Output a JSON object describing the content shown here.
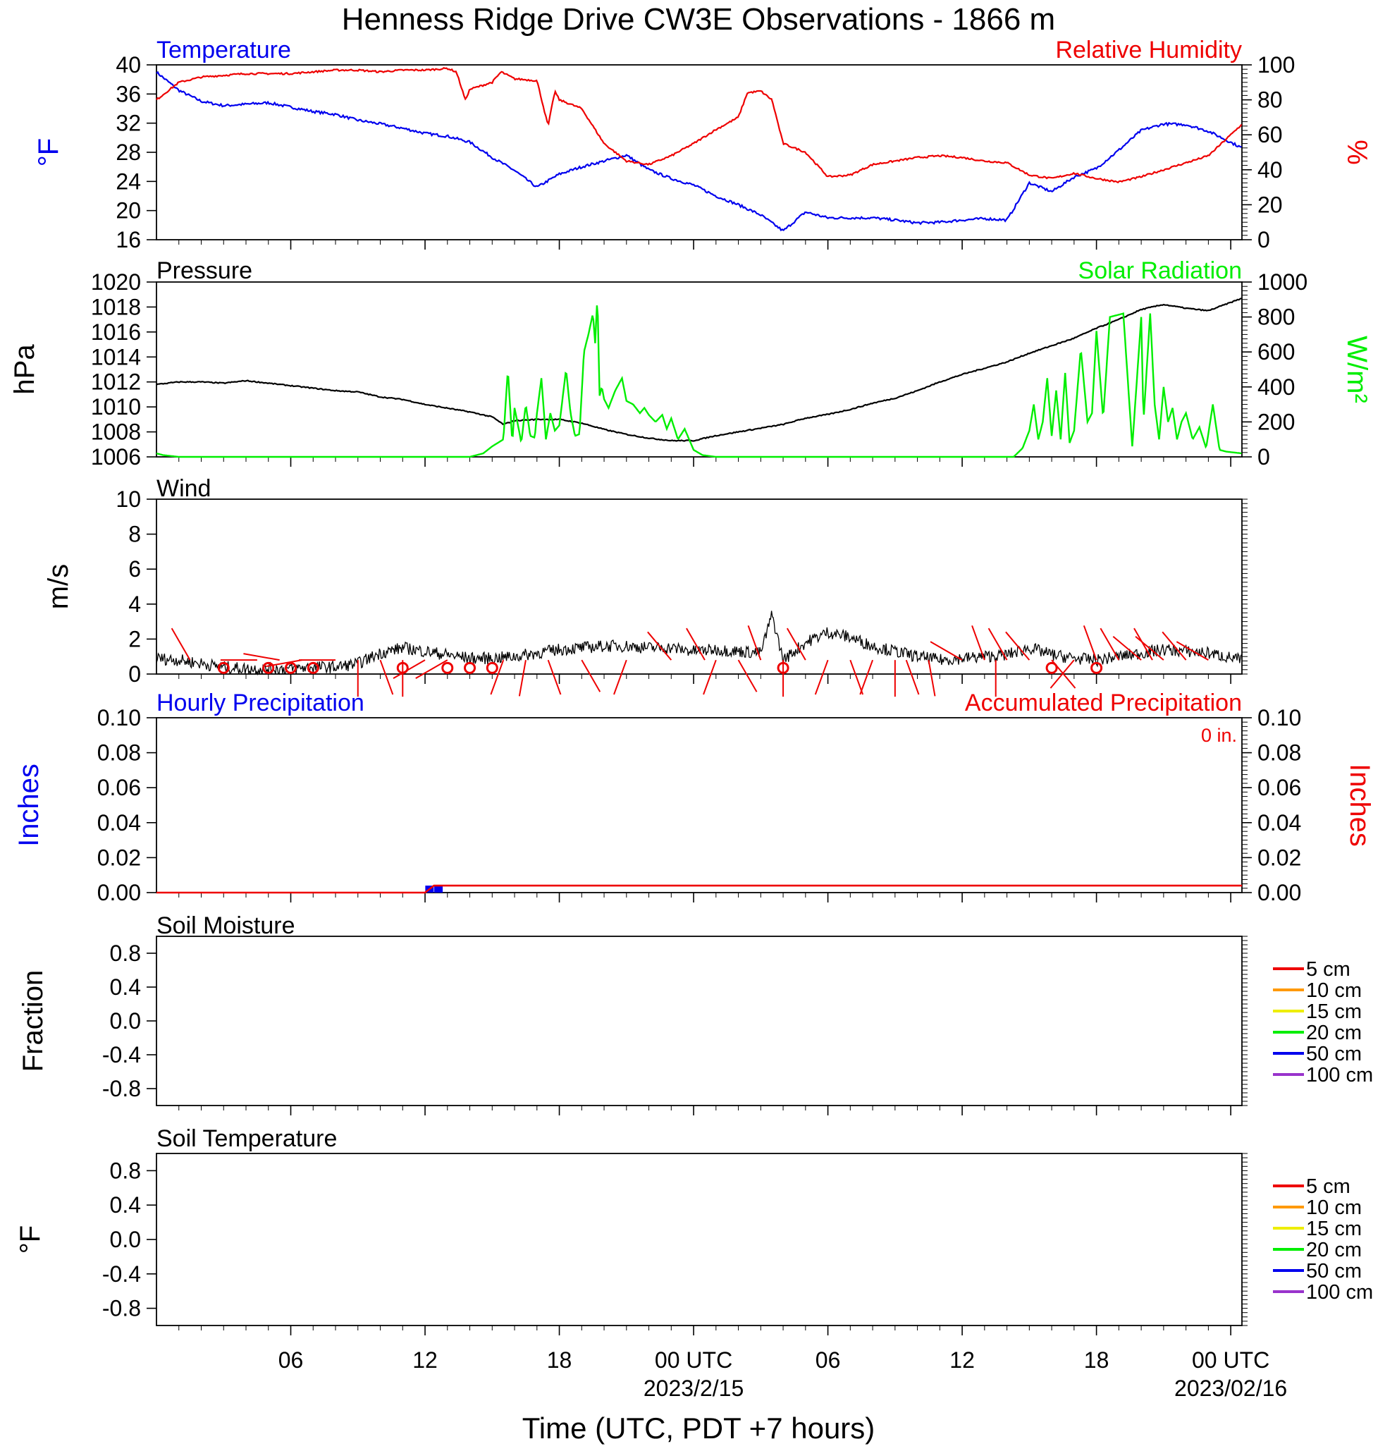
{
  "title": "Henness Ridge Drive CW3E Observations - 1866 m",
  "xaxis": {
    "title": "Time (UTC, PDT +7 hours)",
    "range_hours": [
      0,
      48.5
    ],
    "tick_hours": [
      6,
      12,
      18,
      24,
      30,
      36,
      42,
      48
    ],
    "tick_labels": [
      "06",
      "12",
      "18",
      "00 UTC",
      "06",
      "12",
      "18",
      "00 UTC"
    ],
    "date_labels": [
      {
        "hour": 24,
        "text": "2023/2/15"
      },
      {
        "hour": 48,
        "text": "2023/02/16"
      }
    ]
  },
  "colors": {
    "black": "#000000",
    "blue": "#0000ee",
    "red": "#ee0000",
    "green": "#00ee00",
    "soil": [
      "#ee0000",
      "#ff9900",
      "#eeee00",
      "#00ee00",
      "#0000ee",
      "#9933cc"
    ]
  },
  "panels": {
    "temp": {
      "left_title": "Temperature",
      "right_title": "Relative Humidity",
      "left_unit": "°F",
      "right_unit": "%",
      "left_ticks": [
        "16",
        "20",
        "24",
        "28",
        "32",
        "36",
        "40"
      ],
      "right_ticks": [
        "0",
        "20",
        "40",
        "60",
        "80",
        "100"
      ]
    },
    "pres": {
      "left_title": "Pressure",
      "right_title": "Solar Radiation",
      "left_unit": "hPa",
      "right_unit": "W/m²",
      "left_ticks": [
        "1006",
        "1008",
        "1010",
        "1012",
        "1014",
        "1016",
        "1018",
        "1020"
      ],
      "right_ticks": [
        "0",
        "200",
        "400",
        "600",
        "800",
        "1000"
      ]
    },
    "wind": {
      "left_title": "Wind",
      "left_unit": "m/s",
      "left_ticks": [
        "0",
        "2",
        "4",
        "6",
        "8",
        "10"
      ]
    },
    "precip": {
      "left_title": "Hourly Precipitation",
      "right_title": "Accumulated Precipitation",
      "total_label": "0 in.",
      "left_unit": "Inches",
      "right_unit": "Inches",
      "left_ticks": [
        "0.00",
        "0.02",
        "0.04",
        "0.06",
        "0.08",
        "0.10"
      ],
      "right_ticks": [
        "0.00",
        "0.02",
        "0.04",
        "0.06",
        "0.08",
        "0.10"
      ]
    },
    "soilm": {
      "left_title": "Soil Moisture",
      "left_unit": "Fraction",
      "left_ticks": [
        "-0.8",
        "-0.4",
        "0.0",
        "0.4",
        "0.8"
      ],
      "legend": [
        "5 cm",
        "10 cm",
        "15 cm",
        "20 cm",
        "50 cm",
        "100 cm"
      ]
    },
    "soilt": {
      "left_title": "Soil Temperature",
      "left_unit": "°F",
      "left_ticks": [
        "-0.8",
        "-0.4",
        "0.0",
        "0.4",
        "0.8"
      ],
      "legend": [
        "5 cm",
        "10 cm",
        "15 cm",
        "20 cm",
        "50 cm",
        "100 cm"
      ]
    }
  },
  "chart_data": [
    {
      "type": "line",
      "title": "Temperature / Relative Humidity",
      "x_units": "hours since 2023-02-14 00 UTC",
      "series": [
        {
          "name": "Temperature",
          "axis": "left",
          "color": "#0000ee",
          "ylim": [
            16,
            40
          ],
          "x": [
            0,
            1,
            2,
            3,
            4,
            5,
            6,
            7,
            8,
            9,
            10,
            11,
            12,
            13,
            14,
            15,
            16,
            17,
            18,
            19,
            20,
            21,
            22,
            23,
            24,
            25,
            26,
            27,
            28,
            29,
            30,
            31,
            32,
            33,
            34,
            35,
            36,
            37,
            38,
            39,
            40,
            41,
            42,
            43,
            44,
            45,
            46,
            47,
            48.5
          ],
          "values": [
            39,
            36.5,
            35,
            34.4,
            34.6,
            34.8,
            34.2,
            33.6,
            33.2,
            32.4,
            31.9,
            31.3,
            30.6,
            30.2,
            29.4,
            27.3,
            25.5,
            23.2,
            25,
            26,
            26.8,
            27.6,
            25.6,
            24.4,
            23.5,
            22,
            20.8,
            19.4,
            17.2,
            19.8,
            19,
            19,
            19,
            18.7,
            18.3,
            18.4,
            18.7,
            18.9,
            18.7,
            23.8,
            22.6,
            24.6,
            25.8,
            28.3,
            31,
            31.9,
            31.8,
            30.9,
            28.6
          ]
        },
        {
          "name": "Relative Humidity",
          "axis": "right",
          "color": "#ee0000",
          "ylim": [
            0,
            100
          ],
          "x": [
            0,
            1,
            2,
            3,
            4,
            5,
            6,
            7,
            8,
            9,
            10,
            11,
            12,
            13,
            13.4,
            13.8,
            14,
            15,
            15.4,
            16,
            17,
            17.5,
            17.8,
            18,
            19,
            20,
            21,
            22,
            23,
            24,
            25,
            26,
            26.4,
            27,
            27.5,
            28,
            29,
            30,
            31,
            32,
            33,
            34,
            35,
            36,
            37,
            38,
            39,
            40,
            41,
            42,
            43,
            44,
            45,
            46,
            47,
            48.5
          ],
          "values": [
            80,
            90,
            93,
            94,
            95,
            95,
            95,
            96,
            97,
            97,
            96,
            97,
            97,
            98,
            96,
            80,
            86,
            90,
            96,
            92,
            91,
            65,
            85,
            80,
            75,
            55,
            45,
            43,
            48,
            55,
            63,
            70,
            84,
            85,
            80,
            55,
            50,
            36,
            37,
            43,
            45,
            47,
            48,
            47,
            45,
            44,
            37,
            35,
            38,
            35,
            33,
            36,
            40,
            44,
            48,
            66
          ]
        }
      ]
    },
    {
      "type": "line",
      "title": "Pressure / Solar Radiation",
      "x_units": "hours since 2023-02-14 00 UTC",
      "series": [
        {
          "name": "Pressure",
          "axis": "left",
          "color": "#000000",
          "ylim": [
            1006,
            1020
          ],
          "x": [
            0,
            1,
            2,
            3,
            4,
            5,
            6,
            7,
            8,
            9,
            10,
            11,
            12,
            13,
            14,
            15,
            15.5,
            16,
            17,
            18,
            19,
            20,
            21,
            22,
            23,
            24,
            25,
            26,
            27,
            28,
            29,
            30,
            31,
            32,
            33,
            34,
            35,
            36,
            37,
            38,
            39,
            40,
            41,
            42,
            43,
            44,
            45,
            46,
            47,
            48.5
          ],
          "values": [
            1011.8,
            1012,
            1012,
            1011.9,
            1012.1,
            1011.9,
            1011.7,
            1011.5,
            1011.3,
            1011.2,
            1010.8,
            1010.6,
            1010.2,
            1009.9,
            1009.6,
            1009.2,
            1008.6,
            1008.9,
            1009,
            1009,
            1008.7,
            1008.2,
            1007.8,
            1007.5,
            1007.3,
            1007.3,
            1007.7,
            1008,
            1008.3,
            1008.6,
            1009.1,
            1009.4,
            1009.8,
            1010.3,
            1010.7,
            1011.3,
            1012,
            1012.6,
            1013.1,
            1013.6,
            1014.3,
            1014.9,
            1015.5,
            1016.3,
            1017,
            1017.8,
            1018.2,
            1017.9,
            1017.7,
            1018.7
          ]
        },
        {
          "name": "Solar Radiation",
          "axis": "right",
          "color": "#00ee00",
          "ylim": [
            0,
            1000
          ],
          "x": [
            0,
            0.3,
            1,
            14,
            14.6,
            15,
            15.5,
            15.7,
            15.9,
            16,
            16.2,
            16.3,
            16.5,
            16.7,
            16.9,
            17,
            17.2,
            17.4,
            17.6,
            17.8,
            18,
            18.3,
            18.5,
            18.7,
            18.9,
            19.1,
            19.3,
            19.5,
            19.6,
            19.7,
            19.8,
            19.9,
            20,
            20.2,
            20.5,
            20.8,
            21,
            21.3,
            21.6,
            21.8,
            22,
            22.3,
            22.6,
            22.8,
            23,
            23.3,
            23.6,
            24,
            24.4,
            25,
            26,
            38.3,
            38.7,
            39,
            39.2,
            39.4,
            39.6,
            39.8,
            40,
            40.2,
            40.4,
            40.6,
            40.8,
            41,
            41.3,
            41.6,
            41.8,
            42,
            42.3,
            42.6,
            42.9,
            43.2,
            43.6,
            44,
            44.1,
            44.4,
            44.6,
            44.8,
            45,
            45.2,
            45.4,
            45.6,
            45.8,
            46,
            46.3,
            46.6,
            46.9,
            47.2,
            47.5,
            47.8,
            48.5
          ],
          "values": [
            20,
            10,
            0,
            0,
            20,
            60,
            100,
            500,
            80,
            280,
            150,
            80,
            300,
            120,
            110,
            250,
            450,
            100,
            250,
            150,
            180,
            500,
            250,
            120,
            130,
            600,
            700,
            820,
            650,
            920,
            350,
            400,
            330,
            280,
            380,
            450,
            320,
            300,
            250,
            280,
            240,
            200,
            240,
            160,
            220,
            100,
            160,
            40,
            10,
            0,
            0,
            0,
            50,
            150,
            300,
            100,
            200,
            450,
            120,
            380,
            100,
            480,
            80,
            150,
            620,
            200,
            250,
            720,
            220,
            800,
            810,
            820,
            60,
            800,
            200,
            820,
            300,
            100,
            400,
            200,
            280,
            100,
            200,
            250,
            100,
            170,
            50,
            300,
            40,
            30,
            20
          ]
        }
      ]
    },
    {
      "type": "line",
      "title": "Wind",
      "x_units": "hours since 2023-02-14 00 UTC",
      "series": [
        {
          "name": "Wind Speed",
          "color": "#000000",
          "ylim": [
            0,
            10
          ],
          "x": [
            0,
            1,
            2,
            3,
            4,
            5,
            6,
            7,
            8,
            9,
            10,
            11,
            12,
            13,
            14,
            15,
            16,
            17,
            18,
            19,
            20,
            21,
            22,
            23,
            24,
            25,
            26,
            27,
            27.5,
            28,
            29,
            30,
            31,
            32,
            33,
            34,
            35,
            36,
            37,
            38,
            39,
            40,
            41,
            42,
            43,
            44,
            45,
            46,
            47,
            48.5
          ],
          "values": [
            0.9,
            0.8,
            0.6,
            0.4,
            0.3,
            0.3,
            0.3,
            0.4,
            0.4,
            0.6,
            1.2,
            1.5,
            1.3,
            1.1,
            0.9,
            0.9,
            1,
            1.2,
            1.4,
            1.5,
            1.6,
            1.6,
            1.5,
            1.5,
            1.3,
            1.4,
            1.3,
            1.2,
            3.4,
            0.8,
            1.8,
            2.4,
            2.1,
            1.6,
            1.3,
            1,
            0.8,
            0.9,
            1,
            1.1,
            1.5,
            1.1,
            0.9,
            0.8,
            1,
            1.2,
            1.4,
            1.3,
            1.2,
            0.8
          ]
        }
      ],
      "barbs_hour": [
        1.5,
        4.5,
        5.5,
        6.5,
        8,
        9,
        10,
        11,
        12,
        13,
        15.5,
        16.5,
        17.5,
        19,
        21,
        23,
        24.5,
        25,
        26,
        27,
        28,
        29,
        30,
        31,
        32,
        33,
        33.5,
        34.5,
        36,
        37,
        37.5,
        38,
        39,
        40,
        41,
        42,
        43,
        44,
        44.5,
        45,
        46,
        47
      ],
      "barbs_dir_deg": [
        330,
        270,
        280,
        260,
        270,
        180,
        160,
        180,
        240,
        240,
        200,
        190,
        160,
        150,
        200,
        320,
        330,
        200,
        150,
        340,
        180,
        330,
        200,
        160,
        200,
        180,
        160,
        170,
        300,
        340,
        180,
        330,
        320,
        140,
        220,
        340,
        330,
        310,
        330,
        310,
        320,
        300
      ],
      "calm_hour": [
        3,
        5,
        6,
        7,
        11,
        13,
        14,
        15,
        28,
        40,
        42
      ]
    },
    {
      "type": "bar",
      "title": "Hourly Precipitation / Accumulated Precipitation",
      "x_units": "hours since 2023-02-14 00 UTC",
      "series": [
        {
          "name": "Hourly Precipitation",
          "axis": "left",
          "color": "#0000ee",
          "ylim": [
            0,
            0.1
          ],
          "x": [
            12.2,
            12.6
          ],
          "values": [
            0.004,
            0.004
          ]
        },
        {
          "name": "Accumulated Precipitation",
          "axis": "right",
          "color": "#ee0000",
          "ylim": [
            0,
            0.1
          ],
          "x": [
            0,
            12,
            12.4,
            48.5
          ],
          "values": [
            0,
            0,
            0.004,
            0.004
          ]
        }
      ]
    },
    {
      "type": "line",
      "title": "Soil Moisture",
      "ylim": [
        -1,
        1
      ],
      "series": []
    },
    {
      "type": "line",
      "title": "Soil Temperature",
      "ylim": [
        -1,
        1
      ],
      "series": []
    }
  ]
}
